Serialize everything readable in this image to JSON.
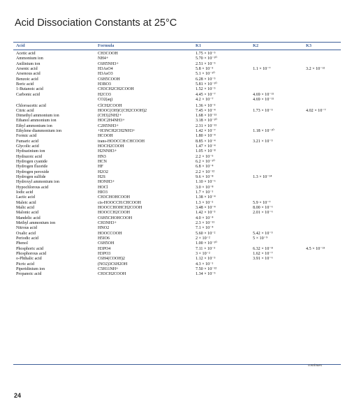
{
  "title": "Acid Dissociation Constants at 25°C",
  "headers": {
    "acid": "Acid",
    "formula": "Formula",
    "k1": "K1",
    "k2": "K2",
    "k3": "K3"
  },
  "rows": [
    {
      "acid": "Acetic acid",
      "formula": "CH3COOH",
      "k1": "1.75 × 10⁻⁵",
      "k2": "",
      "k3": ""
    },
    {
      "acid": "Ammonium ion",
      "formula": "NH4+",
      "k1": "5.70 × 10⁻¹⁰",
      "k2": "",
      "k3": ""
    },
    {
      "acid": "Anilinium ion",
      "formula": "C6H5NH3+",
      "k1": "2.51 × 10⁻⁵",
      "k2": "",
      "k3": ""
    },
    {
      "acid": "Arsenic acid",
      "formula": "H3AsO4",
      "k1": "5.8 × 10⁻³",
      "k2": "1.1 × 10⁻⁷",
      "k3": "3.2 × 10⁻¹²"
    },
    {
      "acid": "Arsenous acid",
      "formula": "H3AsO3",
      "k1": "5.1 × 10⁻¹⁰",
      "k2": "",
      "k3": ""
    },
    {
      "acid": "Benzoic acid",
      "formula": "C6H5COOH",
      "k1": "6.28 × 10⁻⁵",
      "k2": "",
      "k3": ""
    },
    {
      "acid": "Boric acid",
      "formula": "H3BO3",
      "k1": "5.81 × 10⁻¹⁰",
      "k2": "",
      "k3": ""
    },
    {
      "acid": "1-Butanoic acid",
      "formula": "CH3CH2CH2COOH",
      "k1": "1.52 × 10⁻⁵",
      "k2": "",
      "k3": ""
    },
    {
      "acid": "Carbonic acid",
      "formula": "H2CO3",
      "k1": "4.45 × 10⁻⁷",
      "k2": "4.69 × 10⁻¹¹",
      "k3": ""
    },
    {
      "acid": "",
      "formula": "CO2(aq)",
      "k1": "4.2 × 10⁻⁷",
      "k2": "4.69 × 10⁻¹¹",
      "k3": ""
    },
    {
      "acid": "Chloroacetic acid",
      "formula": "ClCH2COOH",
      "k1": "1.36 × 10⁻³",
      "k2": "",
      "k3": ""
    },
    {
      "acid": "Citric acid",
      "formula": "HOOC(OH)C(CH2COOH)2",
      "k1": "7.45 × 10⁻⁴",
      "k2": "1.73 × 10⁻⁵",
      "k3": "4.02 × 10⁻⁷"
    },
    {
      "acid": "Dimethyl ammonium ion",
      "formula": "(CH3)2NH2+",
      "k1": "1.68 × 10⁻¹¹",
      "k2": "",
      "k3": ""
    },
    {
      "acid": "Ethanol ammonium ion",
      "formula": "HOC2H4NH3+",
      "k1": "3.18 × 10⁻¹⁰",
      "k2": "",
      "k3": ""
    },
    {
      "acid": "Ethyl ammonium ion",
      "formula": "C2H5NH3+",
      "k1": "2.31 × 10⁻¹¹",
      "k2": "",
      "k3": ""
    },
    {
      "acid": "Ethylene diammonium ion",
      "formula": "+H3NCH2CH2NH3+",
      "k1": "1.42 × 10⁻⁷",
      "k2": "1.18 × 10⁻¹⁰",
      "k3": ""
    },
    {
      "acid": "Formic acid",
      "formula": "HCOOH",
      "k1": "1.80 × 10⁻⁴",
      "k2": "",
      "k3": ""
    },
    {
      "acid": "Fumaric acid",
      "formula": "trans-HOOCCH:CHCOOH",
      "k1": "8.85 × 10⁻⁴",
      "k2": "3.21 × 10⁻⁵",
      "k3": ""
    },
    {
      "acid": "Glycolic acid",
      "formula": "HOCH2COOH",
      "k1": "1.47 × 10⁻⁴",
      "k2": "",
      "k3": ""
    },
    {
      "acid": "Hydrazinium ion",
      "formula": "H2NNH3+",
      "k1": "1.05 × 10⁻⁸",
      "k2": "",
      "k3": ""
    },
    {
      "acid": "Hydrazoic acid",
      "formula": "HN3",
      "k1": "2.2 × 10⁻⁵",
      "k2": "",
      "k3": ""
    },
    {
      "acid": "Hydrogen cyanide",
      "formula": "HCN",
      "k1": "6.2 × 10⁻¹⁰",
      "k2": "",
      "k3": ""
    },
    {
      "acid": "Hydrogen fluoride",
      "formula": "HF",
      "k1": "6.8 × 10⁻⁴",
      "k2": "",
      "k3": ""
    },
    {
      "acid": "Hydrogen peroxide",
      "formula": "H2O2",
      "k1": "2.2 × 10⁻¹²",
      "k2": "",
      "k3": ""
    },
    {
      "acid": "Hydrogen sulfide",
      "formula": "H2S",
      "k1": "9.6 × 10⁻⁸",
      "k2": "1.3 × 10⁻¹⁴",
      "k3": ""
    },
    {
      "acid": "Hydroxyl ammonium ion",
      "formula": "HONH3+",
      "k1": "1.10 × 10⁻⁶",
      "k2": "",
      "k3": ""
    },
    {
      "acid": "Hypochlorous acid",
      "formula": "HOCl",
      "k1": "3.0 × 10⁻⁸",
      "k2": "",
      "k3": ""
    },
    {
      "acid": "Iodic acid",
      "formula": "HIO3",
      "k1": "1.7 × 10⁻¹",
      "k2": "",
      "k3": ""
    },
    {
      "acid": "Lactic acid",
      "formula": "CH3CHOHCOOH",
      "k1": "1.38 × 10⁻⁴",
      "k2": "",
      "k3": ""
    },
    {
      "acid": "Maleic acid",
      "formula": "cis-HOOCCH:CHCOOH",
      "k1": "1.3 × 10⁻²",
      "k2": "5.9 × 10⁻⁷",
      "k3": ""
    },
    {
      "acid": "Malic acid",
      "formula": "HOOCCHOHCH2COOH",
      "k1": "3.48 × 10⁻⁴",
      "k2": "8.00 × 10⁻⁶",
      "k3": ""
    },
    {
      "acid": "Malonic acid",
      "formula": "HOOCCH2COOH",
      "k1": "1.42 × 10⁻³",
      "k2": "2.01 × 10⁻⁶",
      "k3": ""
    },
    {
      "acid": "Mandelic acid",
      "formula": "C6H5CHOHCOOH",
      "k1": "4.0 × 10⁻⁴",
      "k2": "",
      "k3": ""
    },
    {
      "acid": "Methyl ammonium ion",
      "formula": "CH3NH3+",
      "k1": "2.3 × 10⁻¹¹",
      "k2": "",
      "k3": ""
    },
    {
      "acid": "Nitrous acid",
      "formula": "HNO2",
      "k1": "7.1 × 10⁻⁴",
      "k2": "",
      "k3": ""
    },
    {
      "acid": "Oxalic acid",
      "formula": "HOOCCOOH",
      "k1": "5.60 × 10⁻²",
      "k2": "5.42 × 10⁻⁵",
      "k3": ""
    },
    {
      "acid": "Periodic acid",
      "formula": "H5IO6",
      "k1": "2 × 10⁻²",
      "k2": "5 × 10⁻⁹",
      "k3": ""
    },
    {
      "acid": "Phenol",
      "formula": "C6H5OH",
      "k1": "1.00 × 10⁻¹⁰",
      "k2": "",
      "k3": ""
    },
    {
      "acid": "Phosphoric acid",
      "formula": "H3PO4",
      "k1": "7.11 × 10⁻³",
      "k2": "6.32 × 10⁻⁸",
      "k3": "4.5 × 10⁻¹³"
    },
    {
      "acid": "Phosphorous acid",
      "formula": "H3PO3",
      "k1": "3 × 10⁻²",
      "k2": "1.62 × 10⁻⁷",
      "k3": ""
    },
    {
      "acid": "o-Phthalic acid",
      "formula": "C6H4(COOH)2",
      "k1": "1.12 × 10⁻³",
      "k2": "3.91 × 10⁻⁶",
      "k3": ""
    },
    {
      "acid": "Picric acid",
      "formula": "(NO2)3C6H2OH",
      "k1": "4.3 × 10⁻¹",
      "k2": "",
      "k3": ""
    },
    {
      "acid": "Piperidinium ion",
      "formula": "C5H11NH+",
      "k1": "7.50 × 10⁻¹²",
      "k2": "",
      "k3": ""
    },
    {
      "acid": "Propanoic acid",
      "formula": "CH3CH2COOH",
      "k1": "1.34 × 10⁻⁵",
      "k2": "",
      "k3": ""
    }
  ],
  "continues": "continues",
  "page_number": "24"
}
